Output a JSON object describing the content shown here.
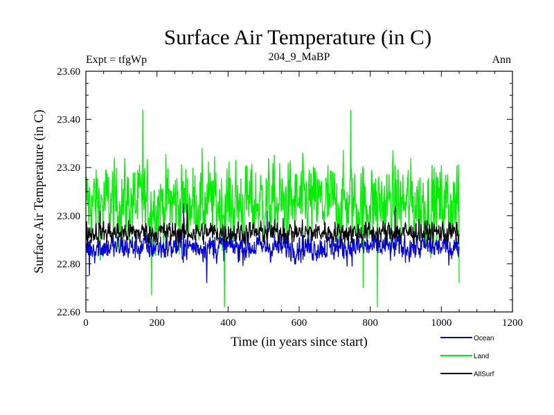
{
  "chart_data": {
    "type": "line",
    "title": "Surface Air Temperature (in C)",
    "subtitle_left": "Expt = tfgWp",
    "subtitle_center": "204_9_MaBP",
    "subtitle_right": "Ann",
    "xlabel": "Time (in years since start)",
    "ylabel": "Surface Air Temperature (in C)",
    "xlim": [
      0,
      1200
    ],
    "ylim": [
      22.6,
      23.6
    ],
    "x_ticks": [
      0,
      200,
      400,
      600,
      800,
      1000,
      1200
    ],
    "x_tick_labels": [
      "0",
      "200",
      "400",
      "600",
      "800",
      "1000",
      "1200"
    ],
    "y_ticks": [
      22.6,
      22.8,
      23.0,
      23.2,
      23.4,
      23.6
    ],
    "y_tick_labels": [
      "22.60",
      "22.80",
      "23.00",
      "23.20",
      "23.40",
      "23.60"
    ],
    "series_years": [
      0,
      1050
    ],
    "series": [
      {
        "name": "Land",
        "color": "#00ee00",
        "mean": 23.05,
        "noise": 0.16,
        "anchors": [
          [
            0,
            23.1
          ],
          [
            160,
            23.44
          ],
          [
            185,
            22.67
          ],
          [
            390,
            22.62
          ],
          [
            745,
            23.44
          ],
          [
            780,
            22.7
          ],
          [
            820,
            22.62
          ],
          [
            1050,
            22.72
          ]
        ]
      },
      {
        "name": "Ocean",
        "color": "#0000dd",
        "mean": 22.87,
        "noise": 0.055,
        "anchors": [
          [
            10,
            22.75
          ],
          [
            275,
            23.05
          ],
          [
            340,
            22.72
          ],
          [
            510,
            23.02
          ],
          [
            870,
            23.03
          ]
        ]
      },
      {
        "name": "AllSurf",
        "color": "#000000",
        "mean": 22.93,
        "noise": 0.045,
        "anchors": [
          [
            40,
            23.02
          ],
          [
            285,
            23.05
          ],
          [
            555,
            22.99
          ],
          [
            870,
            23.04
          ]
        ]
      }
    ],
    "legend": [
      {
        "label": "Ocean",
        "color": "#0000dd"
      },
      {
        "label": "Land",
        "color": "#00ee00"
      },
      {
        "label": "AllSurf",
        "color": "#000000"
      }
    ],
    "legend_position": "bottom-right"
  }
}
